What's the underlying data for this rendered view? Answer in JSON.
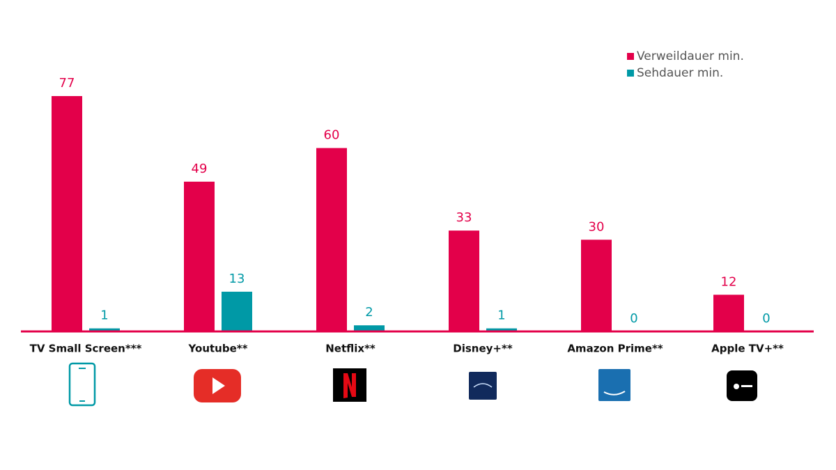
{
  "chart_data": {
    "type": "bar",
    "categories": [
      "TV Small Screen***",
      "Youtube**",
      "Netflix**",
      "Disney+**",
      "Amazon Prime**",
      "Apple TV+**"
    ],
    "series": [
      {
        "name": "Verweildauer min.",
        "color": "#e3004a",
        "values": [
          77,
          49,
          60,
          33,
          30,
          12
        ]
      },
      {
        "name": "Sehdauer min.",
        "color": "#0099a6",
        "values": [
          1,
          13,
          2,
          1,
          0,
          0
        ]
      }
    ],
    "legend": "top-right"
  }
}
